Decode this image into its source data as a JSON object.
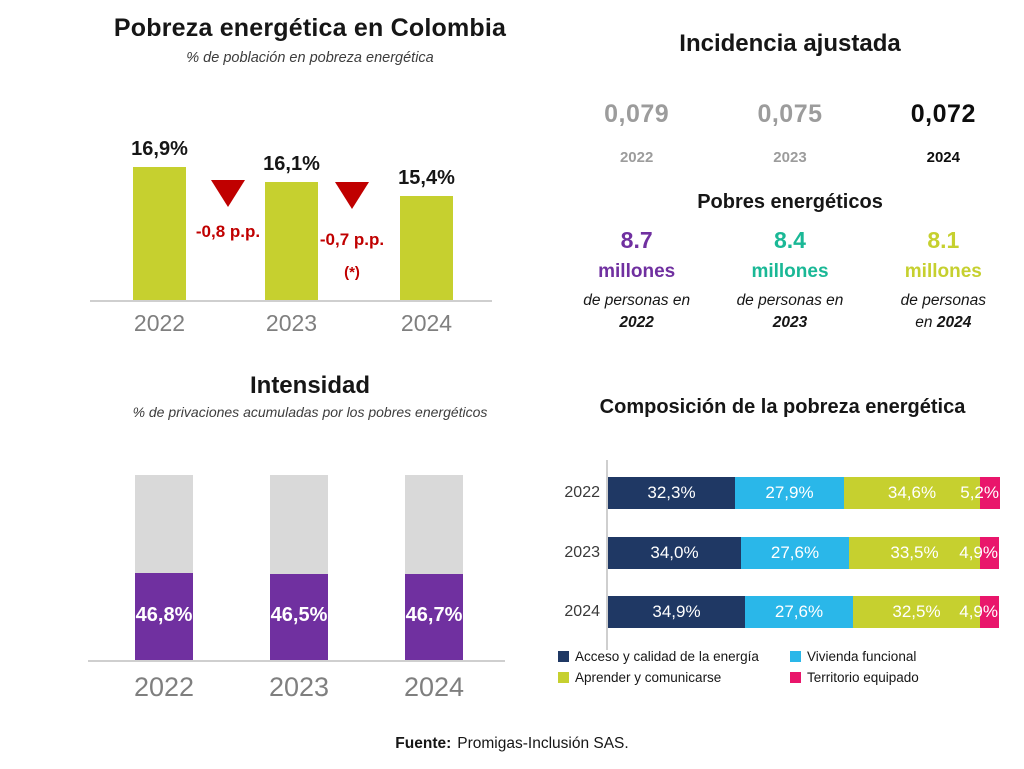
{
  "colors": {
    "chartreuse": "#c6d02f",
    "red": "#c00000",
    "purple": "#7030a0",
    "gray_remainder": "#d9d9d9",
    "teal": "#1ab896",
    "navy": "#1f3864",
    "light_blue": "#2ab7e9",
    "pink": "#e9166b"
  },
  "chart_data": [
    {
      "id": "pobreza",
      "type": "bar",
      "title": "Pobreza energética en Colombia",
      "subtitle": "% de población en pobreza energética",
      "categories": [
        "2022",
        "2023",
        "2024"
      ],
      "values": [
        16.9,
        16.1,
        15.4
      ],
      "labels": [
        "16,9%",
        "16,1%",
        "15,4%"
      ],
      "deltas": [
        {
          "label": "-0,8 p.p.",
          "note": ""
        },
        {
          "label": "-0,7 p.p.",
          "note": "(*)"
        }
      ],
      "bar_color": "#c6d02f",
      "delta_color": "#c00000",
      "axis_min": 10,
      "grid": false,
      "legend_position": "none"
    },
    {
      "id": "intensidad",
      "type": "bar",
      "title": "Intensidad",
      "subtitle": "% de privaciones acumuladas por los pobres energéticos",
      "categories": [
        "2022",
        "2023",
        "2024"
      ],
      "values": [
        46.8,
        46.5,
        46.7
      ],
      "labels": [
        "46,8%",
        "46,5%",
        "46,7%"
      ],
      "stacked_with_remainder_to": 100,
      "bar_color": "#7030a0",
      "remainder_color": "#d9d9d9",
      "ylim": [
        0,
        100
      ],
      "grid": false,
      "legend_position": "none"
    },
    {
      "id": "composicion",
      "type": "bar",
      "orientation": "horizontal-stacked",
      "title": "Composición de la pobreza energética",
      "categories": [
        "2022",
        "2023",
        "2024"
      ],
      "series": [
        {
          "name": "Acceso y calidad de la energía",
          "color": "#1f3864",
          "values": [
            32.3,
            34.0,
            34.9
          ],
          "labels": [
            "32,3%",
            "34,0%",
            "34,9%"
          ]
        },
        {
          "name": "Vivienda funcional",
          "color": "#2ab7e9",
          "values": [
            27.9,
            27.6,
            27.6
          ],
          "labels": [
            "27,9%",
            "27,6%",
            "27,6%"
          ]
        },
        {
          "name": "Aprender y comunicarse",
          "color": "#c6d02f",
          "values": [
            34.6,
            33.5,
            32.5
          ],
          "labels": [
            "34,6%",
            "33,5%",
            "32,5%"
          ]
        },
        {
          "name": "Territorio equipado",
          "color": "#e9166b",
          "values": [
            5.2,
            4.9,
            4.9
          ],
          "labels": [
            "5,2%",
            "4,9%",
            "4,9%"
          ]
        }
      ],
      "xlim": [
        0,
        100
      ],
      "grid": false,
      "legend_position": "bottom"
    }
  ],
  "incidencia": {
    "title": "Incidencia ajustada",
    "items": [
      {
        "value": "0,079",
        "year": "2022",
        "emphasis": false
      },
      {
        "value": "0,075",
        "year": "2023",
        "emphasis": false
      },
      {
        "value": "0,072",
        "year": "2024",
        "emphasis": true
      }
    ]
  },
  "pobres": {
    "title": "Pobres energéticos",
    "items": [
      {
        "value": "8.7",
        "unit": "millones",
        "line1": "de personas en",
        "year_prefix": "",
        "year": "2022",
        "color": "#7030a0"
      },
      {
        "value": "8.4",
        "unit": "millones",
        "line1": "de personas en",
        "year_prefix": "",
        "year": "2023",
        "color": "#1ab896"
      },
      {
        "value": "8.1",
        "unit": "millones",
        "line1": "de personas",
        "year_prefix": "en ",
        "year": "2024",
        "color": "#c6d02f"
      }
    ]
  },
  "footer": {
    "prefix": "Fuente:",
    "text": "Promigas-Inclusión SAS."
  }
}
